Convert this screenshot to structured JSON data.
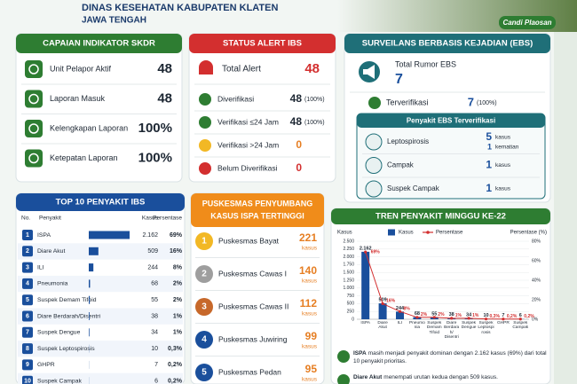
{
  "header": {
    "title": "DINAS KESEHATAN KABUPATEN KLATEN",
    "subtitle": "JAWA TENGAH",
    "photo_caption": "Candi Plaosan"
  },
  "skdr": {
    "title": "CAPAIAN INDIKATOR SKDR",
    "rows": [
      {
        "label": "Unit Pelapor Aktif",
        "value": 48
      },
      {
        "label": "Laporan Masuk",
        "value": 48
      },
      {
        "label": "Kelengkapan Laporan",
        "value": "100%"
      },
      {
        "label": "Ketepatan Laporan",
        "value": "100%"
      }
    ]
  },
  "alert": {
    "title": "STATUS ALERT IBS",
    "total_label": "Total Alert",
    "total": 48,
    "rows": [
      {
        "label": "Diverifikasi",
        "value": 48,
        "note": "(100%)"
      },
      {
        "label": "Verifikasi ≤24 Jam",
        "value": 48,
        "note": "(100%)"
      },
      {
        "label": "Verifikasi >24 Jam",
        "value": 0
      },
      {
        "label": "Belum Diverifikasi",
        "value": 0
      }
    ]
  },
  "ebs": {
    "title": "SURVEILANS BERBASIS KEJADIAN (EBS)",
    "total_label": "Total Rumor EBS",
    "total": 7,
    "verified_label": "Terverifikasi",
    "verified": 7,
    "verified_note": "(100%)",
    "diseases_title": "Penyakit EBS Terverifikasi",
    "diseases": [
      {
        "name": "Leptospirosis",
        "cases": 5,
        "cases_unit": "kasus",
        "deaths": 1,
        "deaths_unit": "kematian"
      },
      {
        "name": "Campak",
        "cases": 1,
        "cases_unit": "kasus"
      },
      {
        "name": "Suspek Campak",
        "cases": 1,
        "cases_unit": "kasus"
      }
    ]
  },
  "top10": {
    "title": "TOP 10 PENYAKIT IBS",
    "columns": [
      "No.",
      "Penyakit",
      "Kasus",
      "Persentase"
    ],
    "ranks": [
      1,
      2,
      3,
      4,
      5,
      6,
      7,
      8,
      9,
      10
    ],
    "diseases": [
      "ISPA",
      "Diare Akut",
      "ILI",
      "Pneumonia",
      "Suspek Demam Tifoid",
      "Diare Berdarah/Disentri",
      "Suspek Dengue",
      "Suspek Leptospirosis",
      "GHPR",
      "Suspek Campak"
    ],
    "cases": [
      2162,
      509,
      244,
      68,
      55,
      38,
      34,
      10,
      7,
      6
    ],
    "case_labels": [
      "2.162",
      "509",
      "244",
      "68",
      "55",
      "38",
      "34",
      "10",
      "7",
      "6"
    ],
    "percent_labels": [
      "69%",
      "16%",
      "8%",
      "2%",
      "2%",
      "1%",
      "1%",
      "0,3%",
      "0,2%",
      "0,2%"
    ]
  },
  "puskesmas": {
    "title_lines": [
      "PUSKESMAS PENYUMBANG",
      "KASUS ISPA TERTINGGI"
    ],
    "ranks": [
      1,
      2,
      3,
      4,
      5
    ],
    "names": [
      "Puskesmas Bayat",
      "Puskesmas Cawas I",
      "Puskesmas Cawas II",
      "Puskesmas Juwiring",
      "Puskesmas Pedan"
    ],
    "cases": [
      221,
      140,
      112,
      99,
      95
    ],
    "unit": "kasus"
  },
  "chart_data": {
    "type": "bar",
    "title": "TREN PENYAKIT MINGGU KE-22",
    "y_label": "Kasus",
    "y2_label": "Persentase (%)",
    "categories": [
      "ISPA",
      "Diare Akut",
      "ILI",
      "Pneumonia",
      "Suspek Demam Tifoid",
      "Diare Berdarah/ Disentri",
      "Suspek Dengue",
      "Suspek Leptospirosis",
      "GHPR",
      "Suspek Campak"
    ],
    "series": [
      {
        "name": "Kasus",
        "color": "#1a4f9c",
        "values": [
          2162,
          509,
          244,
          68,
          55,
          38,
          34,
          10,
          7,
          6
        ],
        "value_labels": [
          "2.162",
          "509",
          "244",
          "68",
          "55",
          "38",
          "34",
          "10",
          "7",
          "6"
        ]
      },
      {
        "name": "Persentase",
        "type": "line",
        "axis": "y2",
        "color": "#d32f2f",
        "values": [
          69,
          16,
          8,
          2,
          2,
          1,
          1,
          0.3,
          0.2,
          0.2
        ],
        "value_labels": [
          "69%",
          "16%",
          "8%",
          "2%",
          "2%",
          "1%",
          "1%",
          "0,3%",
          "0,2%",
          "0,2%"
        ]
      }
    ],
    "ylim": [
      0,
      2500
    ],
    "yticks": [
      0,
      250,
      500,
      750,
      {
        "value": 1000,
        "label": "1.000"
      },
      {
        "value": 1250,
        "label": "1.250"
      },
      {
        "value": 1500,
        "label": "1.500"
      },
      {
        "value": 1750,
        "label": "1.750"
      },
      {
        "value": 2000,
        "label": "2.000"
      },
      {
        "value": 2250,
        "label": "2.250"
      },
      {
        "value": 2500,
        "label": "2.500"
      }
    ],
    "y2lim": [
      0,
      80
    ],
    "y2ticks": [
      {
        "value": 0,
        "label": "0%"
      },
      {
        "value": 20,
        "label": "20%"
      },
      {
        "value": 40,
        "label": "40%"
      },
      {
        "value": 60,
        "label": "60%"
      },
      {
        "value": 80,
        "label": "80%"
      }
    ],
    "grid": true
  },
  "notes": [
    {
      "bold": "ISPA",
      "text": "masih menjadi penyakit dominan dengan 2.162 kasus (69%) dari total 10 penyakit prioritas."
    },
    {
      "bold": "Diare Akut",
      "text": "menempati urutan kedua dengan 509 kasus."
    }
  ]
}
